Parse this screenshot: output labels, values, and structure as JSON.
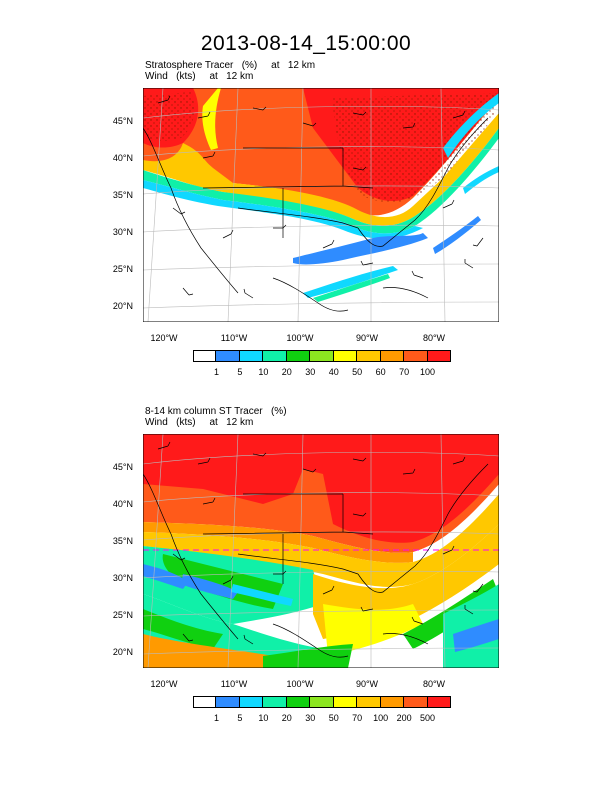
{
  "page_title": "2013-08-14_15:00:00",
  "panels": [
    {
      "caption_line1": "Stratosphere Tracer   (%)     at   12 km",
      "caption_line2": "Wind   (kts)     at   12 km",
      "colorbar_labels": [
        "1",
        "5",
        "10",
        "20",
        "30",
        "40",
        "50",
        "60",
        "70",
        "100"
      ],
      "colorbar_colors": [
        "#ffffff",
        "#2f8cff",
        "#10d8ff",
        "#10f0a8",
        "#10d010",
        "#8ce620",
        "#ffff00",
        "#ffc800",
        "#ff9a00",
        "#ff5a1a",
        "#ff1a1a"
      ]
    },
    {
      "caption_line1": "8-14 km column ST Tracer   (%)",
      "caption_line2": "Wind   (kts)     at   12 km",
      "colorbar_labels": [
        "1",
        "5",
        "10",
        "20",
        "30",
        "50",
        "70",
        "100",
        "200",
        "500"
      ],
      "colorbar_colors": [
        "#ffffff",
        "#2f8cff",
        "#10d8ff",
        "#10f0a8",
        "#10d010",
        "#8ce620",
        "#ffff00",
        "#ffc800",
        "#ff9a00",
        "#ff5a1a",
        "#ff1a1a"
      ]
    }
  ],
  "lat_labels": [
    "45°N",
    "40°N",
    "35°N",
    "30°N",
    "25°N",
    "20°N"
  ],
  "lon_labels": [
    "120°W",
    "110°W",
    "100°W",
    "90°W",
    "80°W"
  ]
}
